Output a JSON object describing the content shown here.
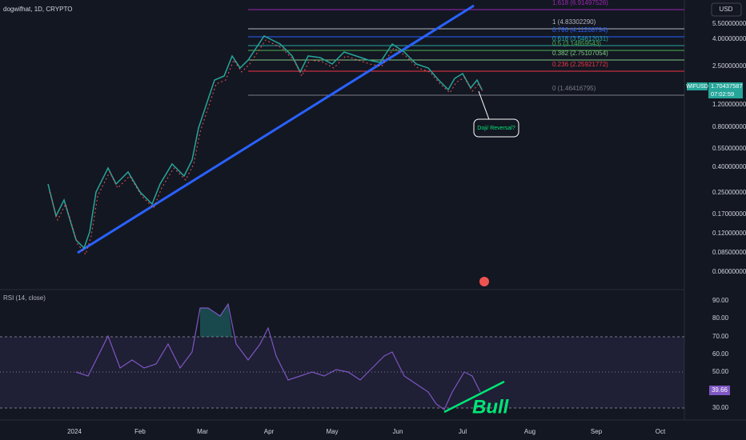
{
  "header": {
    "title": "dogwifhat, 1D, CRYPTO",
    "currency": "USD"
  },
  "ticker": {
    "symbol": "WIFUSD",
    "price": "1.70437587",
    "countdown": "07:02:59"
  },
  "price_axis": [
    "5.50000000",
    "4.00000000",
    "2.50000000",
    "1.20000000",
    "0.80000000",
    "0.55000000",
    "0.40000000",
    "0.25000000",
    "0.17000000",
    "0.12000000",
    "0.08500000",
    "0.06000000"
  ],
  "fib_levels": [
    "1.618 (6.91497526)",
    "1 (4.83302290)",
    "0.786 (4.11208794)",
    "0.618 (3.54612031)",
    "0.5 (3.14859543)",
    "0.382 (2.75107054)",
    "0.236 (2.25921772)",
    "0 (1.46416795)"
  ],
  "rsi": {
    "label": "RSI (14, close)",
    "value": "39.66",
    "axis": [
      "90.00",
      "80.00",
      "70.00",
      "60.00",
      "50.00",
      "30.00"
    ]
  },
  "time_axis": [
    "2024",
    "Feb",
    "Mar",
    "Apr",
    "May",
    "Jun",
    "Jul",
    "Aug",
    "Sep",
    "Oct"
  ],
  "annotations": {
    "callout": "Doji/ Reversal?",
    "bull": "Bull"
  }
}
